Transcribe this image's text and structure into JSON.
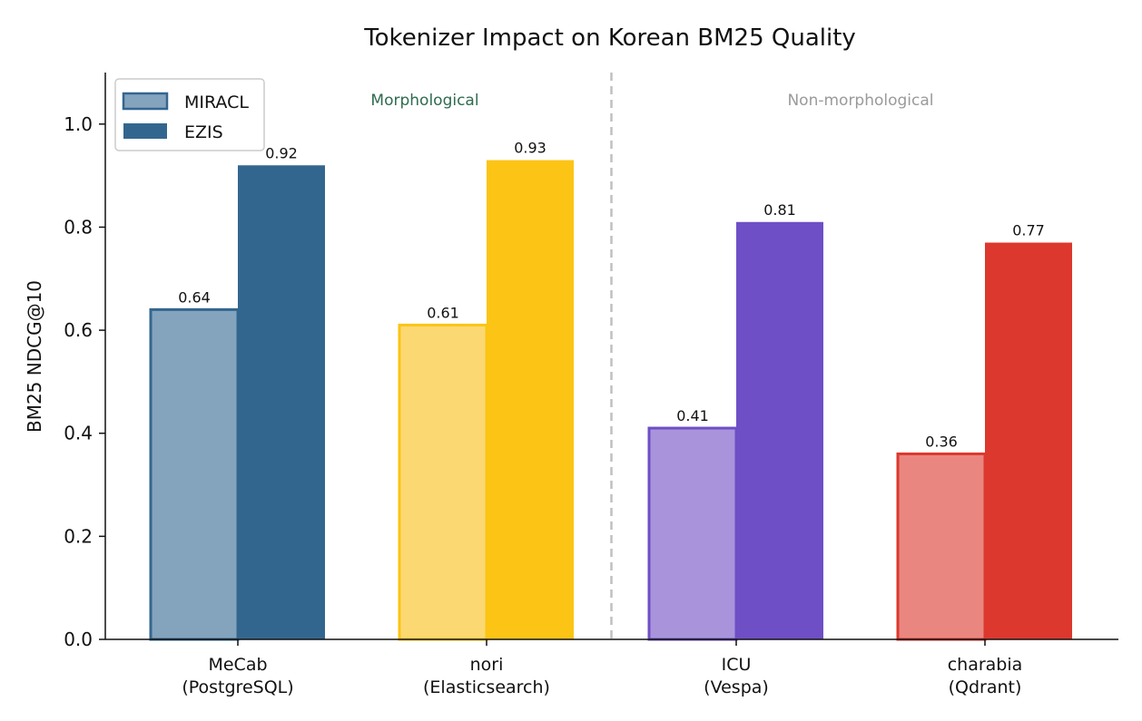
{
  "chart_data": {
    "type": "bar",
    "title": "Tokenizer Impact on Korean BM25 Quality",
    "xlabel": "",
    "ylabel": "BM25 NDCG@10",
    "ylim": [
      0,
      1.1
    ],
    "yticks": [
      "0.0",
      "0.2",
      "0.4",
      "0.6",
      "0.8",
      "1.0"
    ],
    "categories": [
      {
        "name": "MeCab",
        "sub": "(PostgreSQL)"
      },
      {
        "name": "nori",
        "sub": "(Elasticsearch)"
      },
      {
        "name": "ICU",
        "sub": "(Vespa)"
      },
      {
        "name": "charabia",
        "sub": "(Qdrant)"
      }
    ],
    "series": [
      {
        "name": "MIRACL",
        "values": [
          0.64,
          0.61,
          0.41,
          0.36
        ],
        "labels": [
          "0.64",
          "0.61",
          "0.41",
          "0.36"
        ]
      },
      {
        "name": "EZIS",
        "values": [
          0.92,
          0.93,
          0.81,
          0.77
        ],
        "labels": [
          "0.92",
          "0.93",
          "0.81",
          "0.77"
        ]
      }
    ],
    "colors": {
      "miracl_fill": [
        "#84a4bd",
        "#fcd872",
        "#a994dc",
        "#ea8680"
      ],
      "ezis_fill": [
        "#33668f",
        "#fcc414",
        "#6e4fc5",
        "#dc382e"
      ]
    },
    "legend_position": "top-left",
    "grid": false,
    "regions": [
      {
        "label": "Morphological",
        "color": "#2e6b4f"
      },
      {
        "label": "Non-morphological",
        "color": "#9a9a9a"
      }
    ],
    "divider": "dashed vertical line between nori and ICU"
  }
}
